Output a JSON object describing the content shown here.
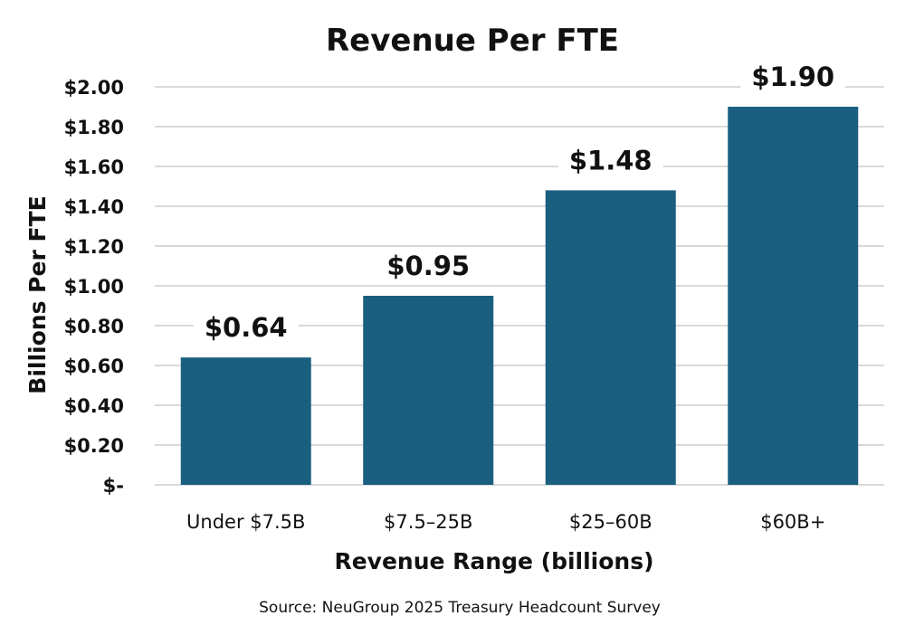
{
  "chart_data": {
    "type": "bar",
    "title": "Revenue Per FTE",
    "xlabel": "Revenue Range (billions)",
    "ylabel": "Billions Per FTE",
    "categories": [
      "Under $7.5B",
      "$7.5–25B",
      "$25–60B",
      "$60B+"
    ],
    "values": [
      0.64,
      0.95,
      1.48,
      1.9
    ],
    "data_labels": [
      "$0.64",
      "$0.95",
      "$1.48",
      "$1.90"
    ],
    "ylim": [
      0,
      2.0
    ],
    "yticks": [
      0,
      0.2,
      0.4,
      0.6,
      0.8,
      1.0,
      1.2,
      1.4,
      1.6,
      1.8,
      2.0
    ],
    "ytick_labels": [
      "$-",
      "$0.20",
      "$0.40",
      "$0.60",
      "$0.80",
      "$1.00",
      "$1.20",
      "$1.40",
      "$1.60",
      "$1.80",
      "$2.00"
    ],
    "grid": true,
    "legend": "none",
    "bar_color": "#1a5f80",
    "grid_color": "#d9d9d9",
    "source": "Source: NeuGroup 2025 Treasury Headcount Survey"
  }
}
